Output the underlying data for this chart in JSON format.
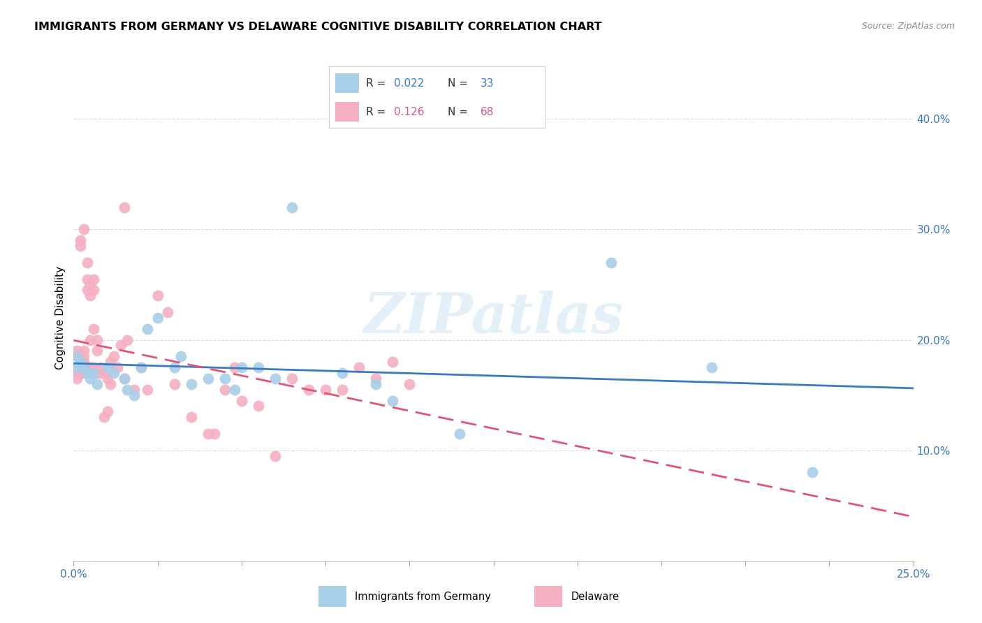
{
  "title": "IMMIGRANTS FROM GERMANY VS DELAWARE COGNITIVE DISABILITY CORRELATION CHART",
  "source": "Source: ZipAtlas.com",
  "ylabel": "Cognitive Disability",
  "ylabel_right_ticks": [
    "40.0%",
    "30.0%",
    "20.0%",
    "10.0%"
  ],
  "ylabel_right_vals": [
    0.4,
    0.3,
    0.2,
    0.1
  ],
  "xlim": [
    0.0,
    0.25
  ],
  "ylim": [
    0.0,
    0.44
  ],
  "blue_color": "#a8cfe8",
  "pink_color": "#f4afc0",
  "blue_line_color": "#3a7abf",
  "pink_line_color": "#e05575",
  "watermark": "ZIPatlas",
  "blue_scatter_x": [
    0.001,
    0.001,
    0.002,
    0.003,
    0.004,
    0.005,
    0.006,
    0.007,
    0.01,
    0.012,
    0.015,
    0.016,
    0.018,
    0.02,
    0.022,
    0.025,
    0.03,
    0.032,
    0.035,
    0.04,
    0.045,
    0.048,
    0.05,
    0.055,
    0.06,
    0.065,
    0.08,
    0.09,
    0.095,
    0.115,
    0.16,
    0.19,
    0.22
  ],
  "blue_scatter_y": [
    0.185,
    0.175,
    0.18,
    0.175,
    0.17,
    0.165,
    0.17,
    0.16,
    0.175,
    0.17,
    0.165,
    0.155,
    0.15,
    0.175,
    0.21,
    0.22,
    0.175,
    0.185,
    0.16,
    0.165,
    0.165,
    0.155,
    0.175,
    0.175,
    0.165,
    0.32,
    0.17,
    0.16,
    0.145,
    0.115,
    0.27,
    0.175,
    0.08
  ],
  "pink_scatter_x": [
    0.001,
    0.001,
    0.001,
    0.001,
    0.001,
    0.002,
    0.002,
    0.002,
    0.002,
    0.002,
    0.002,
    0.003,
    0.003,
    0.003,
    0.003,
    0.003,
    0.003,
    0.004,
    0.004,
    0.004,
    0.004,
    0.005,
    0.005,
    0.005,
    0.005,
    0.006,
    0.006,
    0.006,
    0.006,
    0.007,
    0.007,
    0.007,
    0.008,
    0.008,
    0.009,
    0.009,
    0.01,
    0.01,
    0.011,
    0.011,
    0.012,
    0.013,
    0.014,
    0.015,
    0.015,
    0.016,
    0.018,
    0.02,
    0.022,
    0.025,
    0.028,
    0.03,
    0.035,
    0.04,
    0.042,
    0.045,
    0.048,
    0.05,
    0.055,
    0.06,
    0.065,
    0.07,
    0.075,
    0.08,
    0.085,
    0.09,
    0.095,
    0.1
  ],
  "pink_scatter_y": [
    0.185,
    0.19,
    0.175,
    0.17,
    0.165,
    0.185,
    0.18,
    0.175,
    0.17,
    0.285,
    0.29,
    0.19,
    0.185,
    0.18,
    0.175,
    0.17,
    0.3,
    0.27,
    0.255,
    0.245,
    0.175,
    0.25,
    0.24,
    0.2,
    0.175,
    0.255,
    0.245,
    0.21,
    0.175,
    0.2,
    0.19,
    0.17,
    0.175,
    0.17,
    0.17,
    0.13,
    0.165,
    0.135,
    0.18,
    0.16,
    0.185,
    0.175,
    0.195,
    0.165,
    0.32,
    0.2,
    0.155,
    0.175,
    0.155,
    0.24,
    0.225,
    0.16,
    0.13,
    0.115,
    0.115,
    0.155,
    0.175,
    0.145,
    0.14,
    0.095,
    0.165,
    0.155,
    0.155,
    0.155,
    0.175,
    0.165,
    0.18,
    0.16
  ]
}
